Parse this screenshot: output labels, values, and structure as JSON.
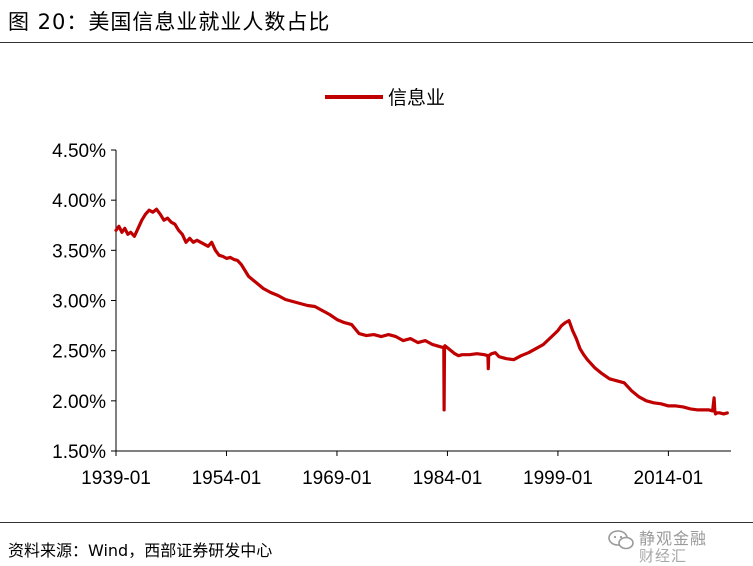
{
  "figure": {
    "title": "图 20：美国信息业就业人数占比",
    "source": "资料来源：Wind，西部证券研发中心"
  },
  "watermark": {
    "line1": "静观金融",
    "line2": "财经汇"
  },
  "chart_data": {
    "type": "line",
    "title": "",
    "xlabel": "",
    "ylabel": "",
    "x_ticks": [
      "1939-01",
      "1954-01",
      "1969-01",
      "1984-01",
      "1999-01",
      "2014-01"
    ],
    "x_tick_years": [
      1939,
      1954,
      1969,
      1984,
      1999,
      2014
    ],
    "xlim": [
      1939,
      2022.5
    ],
    "y_ticks": [
      "1.50%",
      "2.00%",
      "2.50%",
      "3.00%",
      "3.50%",
      "4.00%",
      "4.50%"
    ],
    "y_tick_values": [
      1.5,
      2.0,
      2.5,
      3.0,
      3.5,
      4.0,
      4.5
    ],
    "ylim": [
      1.5,
      4.5
    ],
    "grid": false,
    "legend_position": "top-center",
    "line_color": "#c00000",
    "series": [
      {
        "name": "信息业",
        "x": [
          1939.0,
          1939.4,
          1939.8,
          1940.2,
          1940.6,
          1941.0,
          1941.5,
          1942.0,
          1942.5,
          1943.0,
          1943.5,
          1944.0,
          1944.5,
          1945.0,
          1945.5,
          1946.0,
          1946.5,
          1947.0,
          1947.5,
          1948.0,
          1948.5,
          1949.0,
          1949.5,
          1950.0,
          1950.5,
          1951.0,
          1951.5,
          1952.0,
          1952.5,
          1953.0,
          1953.5,
          1954.0,
          1954.5,
          1955.0,
          1955.5,
          1956.0,
          1956.5,
          1957.0,
          1958.0,
          1959.0,
          1960.0,
          1961.0,
          1962.0,
          1963.0,
          1964.0,
          1965.0,
          1966.0,
          1967.0,
          1968.0,
          1969.0,
          1970.0,
          1971.0,
          1972.0,
          1973.0,
          1974.0,
          1975.0,
          1976.0,
          1977.0,
          1978.0,
          1979.0,
          1980.0,
          1981.0,
          1982.0,
          1983.0,
          1983.5,
          1983.55,
          1983.6,
          1983.65,
          1984.0,
          1984.5,
          1985.0,
          1985.5,
          1986.0,
          1987.0,
          1988.0,
          1989.0,
          1989.5,
          1989.55,
          1989.6,
          1990.0,
          1990.5,
          1991.0,
          1992.0,
          1993.0,
          1994.0,
          1995.0,
          1996.0,
          1997.0,
          1998.0,
          1999.0,
          1999.5,
          2000.0,
          2000.5,
          2001.0,
          2001.5,
          2002.0,
          2002.5,
          2003.0,
          2004.0,
          2005.0,
          2006.0,
          2007.0,
          2008.0,
          2009.0,
          2010.0,
          2011.0,
          2012.0,
          2013.0,
          2014.0,
          2015.0,
          2016.0,
          2017.0,
          2018.0,
          2019.0,
          2019.5,
          2020.0,
          2020.2,
          2020.3,
          2020.4,
          2020.6,
          2021.0,
          2021.5,
          2022.0
        ],
        "y": [
          3.7,
          3.74,
          3.68,
          3.72,
          3.66,
          3.68,
          3.64,
          3.72,
          3.8,
          3.86,
          3.9,
          3.88,
          3.91,
          3.86,
          3.8,
          3.82,
          3.78,
          3.76,
          3.7,
          3.66,
          3.58,
          3.62,
          3.58,
          3.6,
          3.58,
          3.56,
          3.54,
          3.58,
          3.5,
          3.45,
          3.44,
          3.42,
          3.43,
          3.41,
          3.4,
          3.36,
          3.3,
          3.24,
          3.18,
          3.12,
          3.08,
          3.05,
          3.01,
          2.99,
          2.97,
          2.95,
          2.94,
          2.9,
          2.86,
          2.81,
          2.78,
          2.76,
          2.67,
          2.65,
          2.66,
          2.64,
          2.66,
          2.64,
          2.6,
          2.62,
          2.58,
          2.6,
          2.56,
          2.54,
          2.53,
          1.91,
          2.53,
          2.55,
          2.53,
          2.5,
          2.47,
          2.45,
          2.46,
          2.46,
          2.47,
          2.46,
          2.45,
          2.32,
          2.45,
          2.47,
          2.48,
          2.44,
          2.42,
          2.41,
          2.45,
          2.48,
          2.52,
          2.56,
          2.63,
          2.7,
          2.75,
          2.78,
          2.8,
          2.7,
          2.62,
          2.52,
          2.46,
          2.41,
          2.33,
          2.27,
          2.22,
          2.2,
          2.18,
          2.1,
          2.04,
          2.0,
          1.98,
          1.97,
          1.95,
          1.95,
          1.94,
          1.92,
          1.91,
          1.91,
          1.91,
          1.9,
          2.03,
          1.9,
          1.87,
          1.88,
          1.88,
          1.87,
          1.88
        ]
      }
    ]
  }
}
